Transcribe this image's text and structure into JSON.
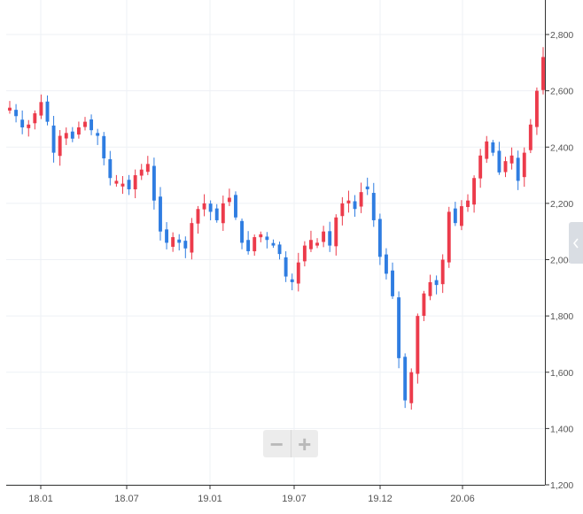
{
  "chart_data": {
    "type": "candlestick",
    "title": "",
    "xlabel": "",
    "ylabel": "",
    "x_ticks": [
      "18.01",
      "18.07",
      "19.01",
      "19.07",
      "19.12",
      "20.06"
    ],
    "y_ticks": [
      "1,200",
      "1,400",
      "1,600",
      "1,800",
      "2,000",
      "2,200",
      "2,400",
      "2,600",
      "2,800"
    ],
    "ylim": [
      1200,
      2900
    ],
    "grid": true,
    "legend": "none",
    "colors": {
      "up": "#ec3b4b",
      "down": "#2f7de1",
      "grid": "#eef1f5",
      "axis": "#333333",
      "tick_label": "#555555"
    },
    "series": [
      {
        "values": [
          2540,
          2510,
          2470,
          2480,
          2520,
          2560,
          2490,
          2380,
          2440,
          2450,
          2430,
          2470,
          2490,
          2460,
          2440,
          2360,
          2290,
          2280,
          2270,
          2250,
          2300,
          2320,
          2340,
          2210,
          2100,
          2060,
          2080,
          2060,
          2040,
          2130,
          2180,
          2200,
          2170,
          2140,
          2200,
          2220,
          2150,
          2060,
          2030,
          2080,
          2090,
          2070,
          2050,
          2020,
          1940,
          1920,
          1990,
          2050,
          2070,
          2060,
          2100,
          2050,
          2150,
          2200,
          2210,
          2180,
          2240,
          2250,
          2140,
          2010,
          1950,
          1870,
          1650,
          1500,
          1600,
          1800,
          1880,
          1920,
          1910,
          2000,
          2170,
          2130,
          2190,
          2210,
          2290,
          2370,
          2420,
          2380,
          2310,
          2350,
          2370,
          2280,
          2380,
          2480,
          2600,
          2720
        ]
      }
    ]
  },
  "zoom": {
    "minus": "−",
    "plus": "+"
  }
}
